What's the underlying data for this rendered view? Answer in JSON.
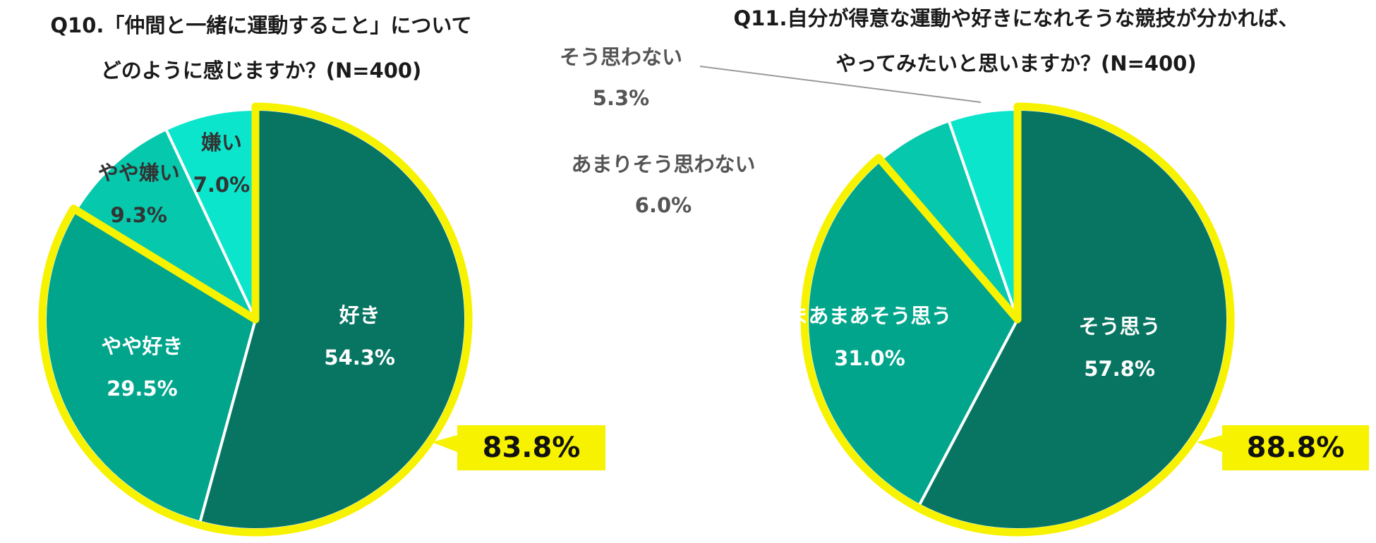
{
  "charts": {
    "accent": "#f7f200",
    "q10": {
      "title_line1": "Q10.「仲間と一緒に運動すること」について",
      "title_line2": "どのように感じますか？(N=400)",
      "combined_callout": "83.8%"
    },
    "q11": {
      "title_line1": "Q11.自分が得意な運動や好きになれそうな競技が分かれば、",
      "title_line2": "やってみたいと思いますか？(N=400)",
      "combined_callout": "88.8%"
    }
  },
  "chart_data": [
    {
      "type": "pie",
      "slices": [
        {
          "label": "好き",
          "value": 54.3,
          "value_label": "54.3%",
          "color": "#077562"
        },
        {
          "label": "やや好き",
          "value": 29.5,
          "value_label": "29.5%",
          "color": "#00a58c"
        },
        {
          "label": "やや嫌い",
          "value": 9.3,
          "value_label": "9.3%",
          "color": "#05c8ac"
        },
        {
          "label": "嫌い",
          "value": 7.0,
          "value_label": "7.0%",
          "color": "#0ae5cc"
        }
      ]
    },
    {
      "type": "pie",
      "slices": [
        {
          "label": "そう思う",
          "value": 57.8,
          "value_label": "57.8%",
          "color": "#077562"
        },
        {
          "label": "まあまあそう思う",
          "value": 31.0,
          "value_label": "31.0%",
          "color": "#00a58c"
        },
        {
          "label": "あまりそう思わない",
          "value": 6.0,
          "value_label": "6.0%",
          "color": "#05c8ac"
        },
        {
          "label": "そう思わない",
          "value": 5.3,
          "value_label": "5.3%",
          "color": "#0ae5cc"
        }
      ]
    }
  ]
}
